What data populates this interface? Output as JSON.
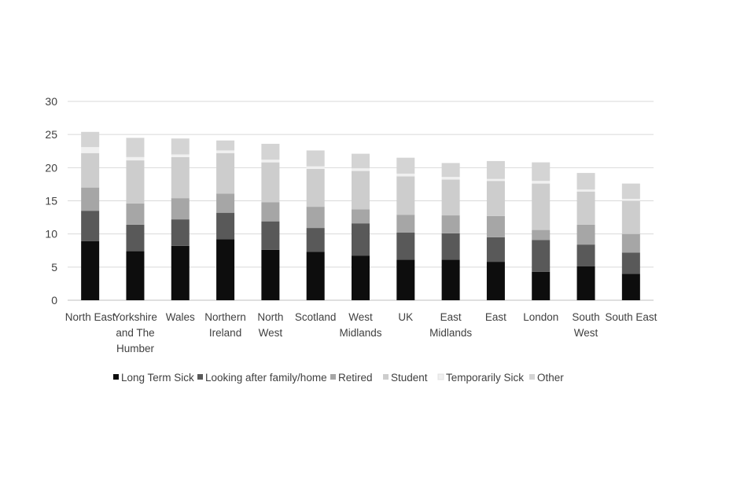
{
  "chart_data": {
    "type": "bar",
    "stacked": true,
    "categories": [
      [
        "North East"
      ],
      [
        "Yorkshire",
        "and The",
        "Humber"
      ],
      [
        "Wales"
      ],
      [
        "Northern",
        "Ireland"
      ],
      [
        "North",
        "West"
      ],
      [
        "Scotland"
      ],
      [
        "West",
        "Midlands"
      ],
      [
        "UK"
      ],
      [
        "East",
        "Midlands"
      ],
      [
        "East"
      ],
      [
        "London"
      ],
      [
        "South",
        "West"
      ],
      [
        "South East"
      ]
    ],
    "series": [
      {
        "name": "Long Term Sick",
        "color": "#0d0d0d",
        "values": [
          8.9,
          7.4,
          8.2,
          9.2,
          7.6,
          7.3,
          6.7,
          6.1,
          6.1,
          5.8,
          4.3,
          5.1,
          4.0
        ]
      },
      {
        "name": "Looking after family/home",
        "color": "#595959",
        "values": [
          4.6,
          4.0,
          4.0,
          4.0,
          4.3,
          3.6,
          4.9,
          4.1,
          4.0,
          3.7,
          4.8,
          3.3,
          3.2
        ]
      },
      {
        "name": "Retired",
        "color": "#a6a6a6",
        "values": [
          3.5,
          3.2,
          3.2,
          2.9,
          2.9,
          3.2,
          2.1,
          2.7,
          2.7,
          3.2,
          1.5,
          3.0,
          2.8
        ]
      },
      {
        "name": "Student",
        "color": "#cdcdcd",
        "values": [
          5.2,
          6.5,
          6.2,
          6.1,
          6.0,
          5.7,
          5.8,
          5.8,
          5.4,
          5.3,
          7.0,
          5.0,
          5.0
        ]
      },
      {
        "name": "Temporarily Sick",
        "color": "#f0f0f0",
        "values": [
          0.9,
          0.5,
          0.4,
          0.4,
          0.4,
          0.4,
          0.4,
          0.4,
          0.4,
          0.3,
          0.4,
          0.3,
          0.3
        ]
      },
      {
        "name": "Other",
        "color": "#d4d4d4",
        "values": [
          2.3,
          2.9,
          2.4,
          1.5,
          2.4,
          2.4,
          2.2,
          2.4,
          2.1,
          2.7,
          2.8,
          2.5,
          2.3
        ]
      }
    ],
    "yticks": [
      0,
      5,
      10,
      15,
      20,
      25,
      30
    ],
    "ylim": [
      0,
      30
    ],
    "grid": true,
    "legend": "bottom",
    "gridline_color": "#d9d9d9",
    "axis_color": "#bfbfbf"
  }
}
